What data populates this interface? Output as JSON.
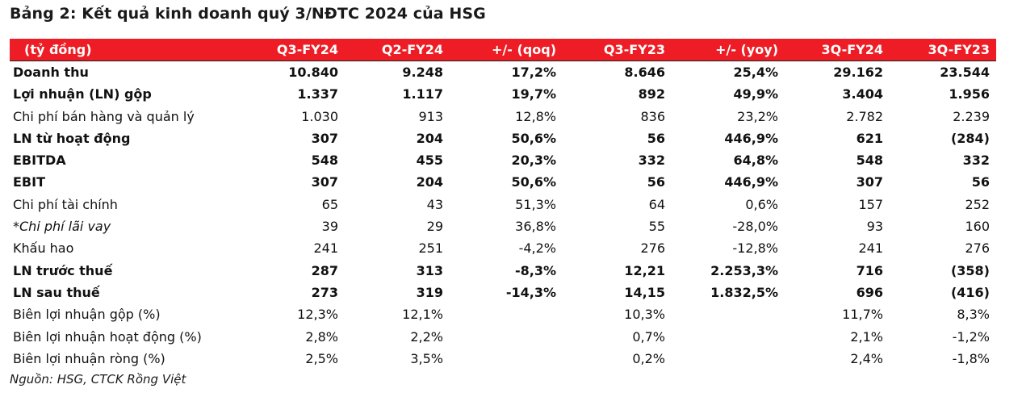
{
  "title": "Bảng 2: Kết quả kinh doanh quý 3/NĐTC 2024 của HSG",
  "table": {
    "headers": [
      "(tỷ đồng)",
      "Q3-FY24",
      "Q2-FY24",
      "+/- (qoq)",
      "Q3-FY23",
      "+/- (yoy)",
      "3Q-FY24",
      "3Q-FY23"
    ],
    "rows": [
      {
        "label": "Doanh thu",
        "style": "bold",
        "values": [
          "10.840",
          "9.248",
          "17,2%",
          "8.646",
          "25,4%",
          "29.162",
          "23.544"
        ]
      },
      {
        "label": "Lợi nhuận (LN) gộp",
        "style": "bold",
        "values": [
          "1.337",
          "1.117",
          "19,7%",
          "892",
          "49,9%",
          "3.404",
          "1.956"
        ]
      },
      {
        "label": "Chi phí bán hàng và quản lý",
        "style": "normal",
        "values": [
          "1.030",
          "913",
          "12,8%",
          "836",
          "23,2%",
          "2.782",
          "2.239"
        ]
      },
      {
        "label": "LN từ hoạt động",
        "style": "bold",
        "values": [
          "307",
          "204",
          "50,6%",
          "56",
          "446,9%",
          "621",
          "(284)"
        ]
      },
      {
        "label": "EBITDA",
        "style": "bold",
        "values": [
          "548",
          "455",
          "20,3%",
          "332",
          "64,8%",
          "548",
          "332"
        ]
      },
      {
        "label": "EBIT",
        "style": "bold",
        "values": [
          "307",
          "204",
          "50,6%",
          "56",
          "446,9%",
          "307",
          "56"
        ]
      },
      {
        "label": "Chi phí tài chính",
        "style": "normal",
        "values": [
          "65",
          "43",
          "51,3%",
          "64",
          "0,6%",
          "157",
          "252"
        ]
      },
      {
        "label": "*Chi phí lãi vay",
        "style": "italic",
        "values": [
          "39",
          "29",
          "36,8%",
          "55",
          "-28,0%",
          "93",
          "160"
        ]
      },
      {
        "label": "Khấu hao",
        "style": "normal",
        "values": [
          "241",
          "251",
          "-4,2%",
          "276",
          "-12,8%",
          "241",
          "276"
        ]
      },
      {
        "label": "LN trước thuế",
        "style": "bold",
        "values": [
          "287",
          "313",
          "-8,3%",
          "12,21",
          "2.253,3%",
          "716",
          "(358)"
        ]
      },
      {
        "label": "LN sau thuế",
        "style": "bold",
        "values": [
          "273",
          "319",
          "-14,3%",
          "14,15",
          "1.832,5%",
          "696",
          "(416)"
        ]
      },
      {
        "label": "Biên lợi nhuận gộp (%)",
        "style": "normal",
        "values": [
          "12,3%",
          "12,1%",
          "",
          "10,3%",
          "",
          "11,7%",
          "8,3%"
        ]
      },
      {
        "label": "Biên lợi nhuận hoạt động (%)",
        "style": "normal",
        "values": [
          "2,8%",
          "2,2%",
          "",
          "0,7%",
          "",
          "2,1%",
          "-1,2%"
        ]
      },
      {
        "label": "Biên lợi nhuận ròng (%)",
        "style": "normal",
        "values": [
          "2,5%",
          "3,5%",
          "",
          "0,2%",
          "",
          "2,4%",
          "-1,8%"
        ]
      }
    ]
  },
  "source": "Nguồn: HSG, CTCK Rồng Việt",
  "colors": {
    "header_bg": "#ee1c24",
    "header_text": "#ffffff"
  }
}
